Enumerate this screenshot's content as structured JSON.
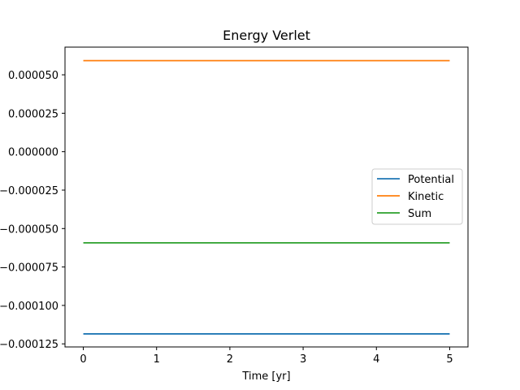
{
  "chart_data": {
    "type": "line",
    "title": "Energy Verlet",
    "xlabel": "Time [yr]",
    "ylabel": "",
    "xlim": [
      -0.25,
      5.25
    ],
    "ylim": [
      -0.000127,
      6.8e-05
    ],
    "xticks": [
      0,
      1,
      2,
      3,
      4,
      5
    ],
    "xtick_labels": [
      "0",
      "1",
      "2",
      "3",
      "4",
      "5"
    ],
    "yticks": [
      -0.000125,
      -0.0001,
      -7.5e-05,
      -5e-05,
      -2.5e-05,
      0,
      2.5e-05,
      5e-05
    ],
    "ytick_labels": [
      "−0.000125",
      "−0.000100",
      "−0.000075",
      "−0.000050",
      "−0.000025",
      "0.000000",
      "0.000025",
      "0.000050"
    ],
    "grid": false,
    "legend_position": "center-right",
    "series": [
      {
        "name": "Potential",
        "color": "#1f77b4",
        "x": [
          0,
          5
        ],
        "y": [
          -0.0001185,
          -0.0001185
        ]
      },
      {
        "name": "Kinetic",
        "color": "#ff7f0e",
        "x": [
          0,
          5
        ],
        "y": [
          5.92e-05,
          5.92e-05
        ]
      },
      {
        "name": "Sum",
        "color": "#2ca02c",
        "x": [
          0,
          5
        ],
        "y": [
          -5.93e-05,
          -5.93e-05
        ]
      }
    ]
  }
}
